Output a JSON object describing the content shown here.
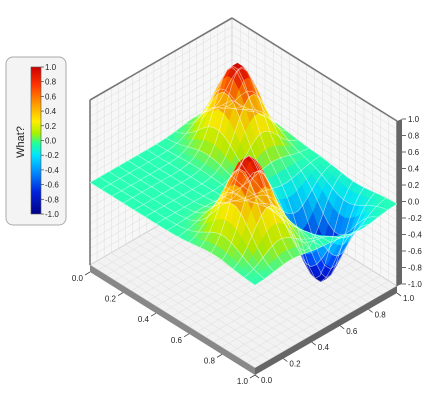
{
  "chart_data": {
    "type": "surface3d",
    "title": "",
    "x": {
      "range": [
        0,
        1
      ],
      "ticks": [
        "0.0",
        "0.2",
        "0.4",
        "0.6",
        "0.8",
        "1.0"
      ]
    },
    "y": {
      "range": [
        0,
        1
      ],
      "ticks": [
        "0.0",
        "0.2",
        "0.4",
        "0.6",
        "0.8",
        "1.0"
      ]
    },
    "z": {
      "range": [
        -1,
        1
      ],
      "ticks": [
        "-1.0",
        "-0.8",
        "-0.6",
        "-0.4",
        "-0.2",
        "0.0",
        "0.2",
        "0.4",
        "0.6",
        "0.8",
        "1.0"
      ]
    },
    "peaks": [
      {
        "x": 0.75,
        "y": 0.25,
        "z": 1.0
      },
      {
        "x": 0.25,
        "y": 0.75,
        "z": 1.0
      },
      {
        "x": 0.25,
        "y": 0.25,
        "z": 0.0
      },
      {
        "x": 0.75,
        "y": 0.75,
        "z": -1.0
      }
    ],
    "colorbar": {
      "title": "What?",
      "placement": "left",
      "ticks": [
        "1.0",
        "0.8",
        "0.6",
        "0.4",
        "0.2",
        "0.0",
        "-0.2",
        "-0.4",
        "-0.6",
        "-0.8",
        "-1.0"
      ]
    },
    "grid": true
  }
}
